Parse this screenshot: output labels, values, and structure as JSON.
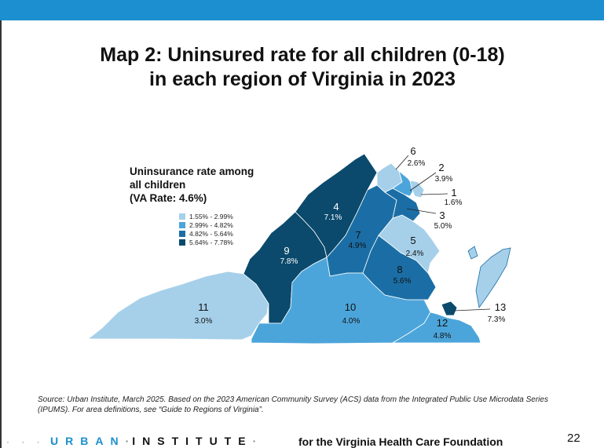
{
  "title_line1": "Map 2: Uninsured rate for all children (0-18)",
  "title_line2": "in each region of Virginia in 2023",
  "legend": {
    "title_line1": "Uninsurance rate among",
    "title_line2": "all children",
    "title_line3": "(VA Rate: 4.6%)",
    "items": [
      {
        "label": "1.55% - 2.99%",
        "color": "#a6d0ea"
      },
      {
        "label": "2.99% - 4.82%",
        "color": "#4ca5da"
      },
      {
        "label": "4.82% - 5.64%",
        "color": "#1b6ea5"
      },
      {
        "label": "5.64% - 7.78%",
        "color": "#0b4a6c"
      }
    ]
  },
  "regions": [
    {
      "id": "1",
      "rate": "1.6%",
      "color": "#a6d0ea"
    },
    {
      "id": "2",
      "rate": "3.9%",
      "color": "#4ca5da"
    },
    {
      "id": "3",
      "rate": "5.0%",
      "color": "#1b6ea5"
    },
    {
      "id": "4",
      "rate": "7.1%",
      "color": "#0b4a6c"
    },
    {
      "id": "5",
      "rate": "2.4%",
      "color": "#a6d0ea"
    },
    {
      "id": "6",
      "rate": "2.6%",
      "color": "#a6d0ea"
    },
    {
      "id": "7",
      "rate": "4.9%",
      "color": "#1b6ea5"
    },
    {
      "id": "8",
      "rate": "5.6%",
      "color": "#1b6ea5"
    },
    {
      "id": "9",
      "rate": "7.8%",
      "color": "#0b4a6c"
    },
    {
      "id": "10",
      "rate": "4.0%",
      "color": "#4ca5da"
    },
    {
      "id": "11",
      "rate": "3.0%",
      "color": "#a6d0ea"
    },
    {
      "id": "12",
      "rate": "4.8%",
      "color": "#4ca5da"
    },
    {
      "id": "13",
      "rate": "7.3%",
      "color": "#0b4a6c"
    }
  ],
  "source": "Source: Urban Institute, March 2025. Based on the 2023 American Community Survey (ACS) data from the Integrated Public Use Microdata Series (IPUMS). For area definitions, see “Guide to Regions of Virginia”.",
  "footer": {
    "dots": "· · · ·",
    "brand_urban": "URBAN",
    "brand_institute": "INSTITUTE",
    "tagline": "for the Virginia Health Care Foundation",
    "page_number": "22"
  },
  "accent_color": "#1b8fcf"
}
